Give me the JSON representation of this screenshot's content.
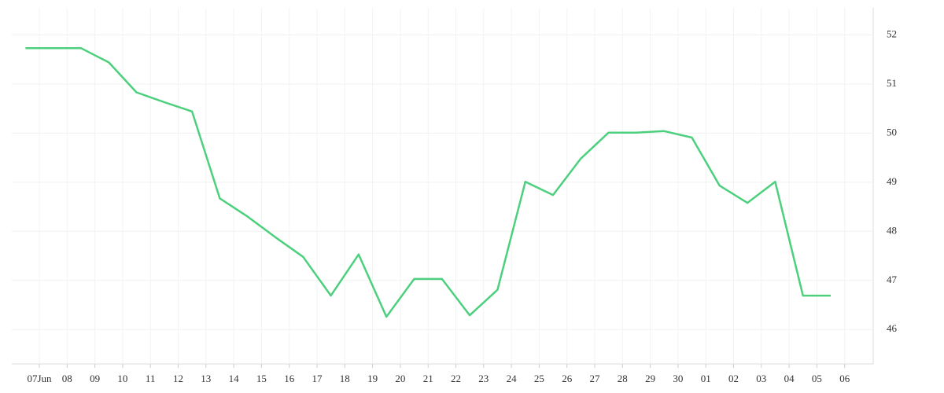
{
  "chart_data": {
    "type": "line",
    "categories": [
      "07Jun",
      "08",
      "09",
      "10",
      "11",
      "12",
      "13",
      "14",
      "15",
      "16",
      "17",
      "18",
      "19",
      "20",
      "21",
      "22",
      "23",
      "24",
      "25",
      "26",
      "27",
      "28",
      "29",
      "30",
      "01",
      "02",
      "03",
      "04",
      "05",
      "06"
    ],
    "series": [
      {
        "color": "#4cd07d",
        "values": [
          51.73,
          51.73,
          51.73,
          51.44,
          50.83,
          50.63,
          50.44,
          48.67,
          48.3,
          47.88,
          47.48,
          46.69,
          47.53,
          46.26,
          47.03,
          47.03,
          46.29,
          46.81,
          49.01,
          48.74,
          49.48,
          50.01,
          50.01,
          50.04,
          49.91,
          48.93,
          48.58,
          49.01,
          46.69,
          46.69
        ]
      }
    ],
    "ylim": [
      45.3,
      52.55
    ],
    "yticks": [
      46,
      47,
      48,
      49,
      50,
      51,
      52
    ],
    "grid": true
  }
}
